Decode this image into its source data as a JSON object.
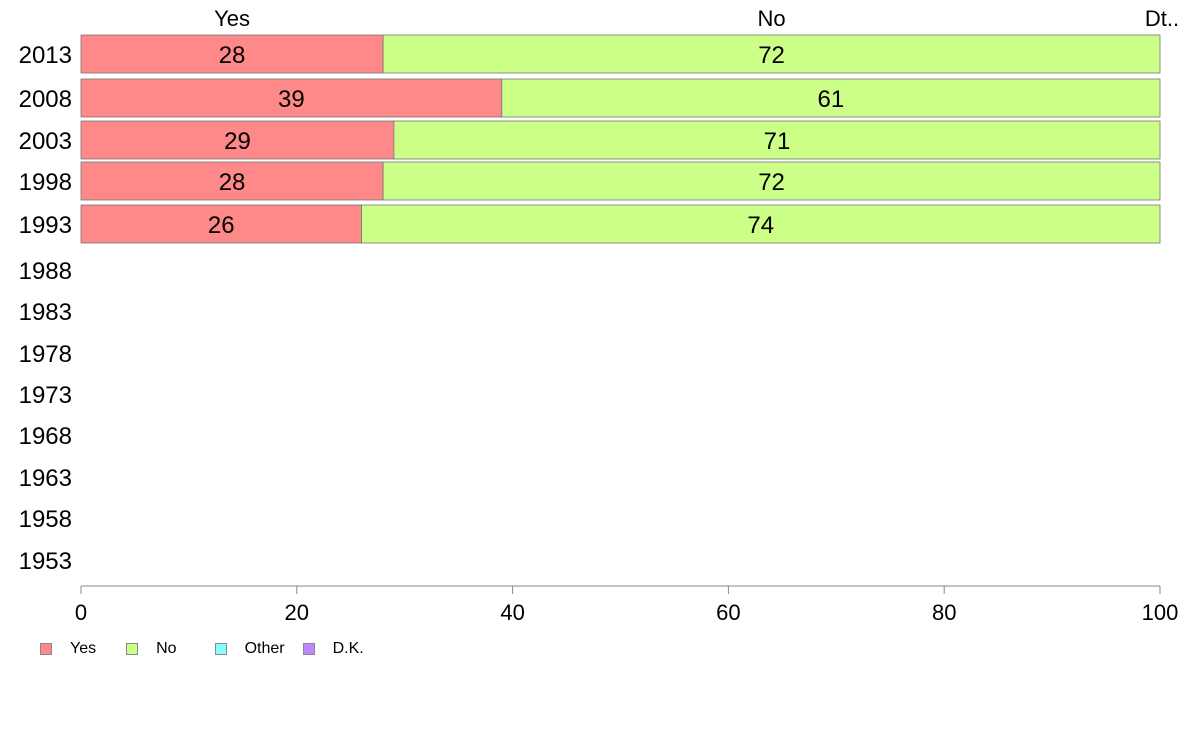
{
  "chart_data": {
    "type": "bar",
    "orientation": "horizontal",
    "stacked": true,
    "categories": [
      "2013",
      "2008",
      "2003",
      "1998",
      "1993",
      "1988",
      "1983",
      "1978",
      "1973",
      "1968",
      "1963",
      "1958",
      "1953"
    ],
    "series": [
      {
        "name": "Yes",
        "color": "#ff8888",
        "values": [
          28,
          39,
          29,
          28,
          26,
          null,
          null,
          null,
          null,
          null,
          null,
          null,
          null
        ]
      },
      {
        "name": "No",
        "color": "#ccff88",
        "values": [
          72,
          61,
          71,
          72,
          74,
          null,
          null,
          null,
          null,
          null,
          null,
          null,
          null
        ]
      },
      {
        "name": "Other",
        "color": "#88ffff",
        "values": [
          0,
          0,
          0,
          0,
          0,
          null,
          null,
          null,
          null,
          null,
          null,
          null,
          null
        ]
      },
      {
        "name": "D.K.",
        "color": "#bb88ff",
        "values": [
          0,
          0,
          0,
          0,
          0,
          null,
          null,
          null,
          null,
          null,
          null,
          null,
          null
        ]
      }
    ],
    "top_labels": [
      "Yes",
      "No",
      "Dt.."
    ],
    "xlim": [
      0,
      100
    ],
    "xticks": [
      "0",
      "20",
      "40",
      "60",
      "80",
      "100"
    ],
    "grid": false,
    "legend_position": "bottom-left"
  }
}
